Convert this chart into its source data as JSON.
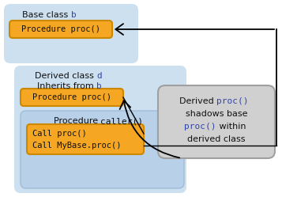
{
  "bg_color": "#ffffff",
  "light_blue": "#cde0f0",
  "light_blue2": "#bad4eb",
  "orange_fill": "#f5a623",
  "orange_border": "#cc8800",
  "gray_fill": "#d0d0d0",
  "gray_border": "#a0a0a0",
  "blue_text": "#3344aa",
  "dark_text": "#111111",
  "mono_font": "monospace",
  "sans_font": "DejaVu Sans",
  "base_class_sans": "Base class ",
  "base_class_mono": "b",
  "derived_class_sans": "Derived class ",
  "derived_class_mono": "d",
  "inherits_sans": "Inherits from ",
  "inherits_mono": "b",
  "proc_text": "Procedure proc()",
  "caller_label_sans": "Procedure ",
  "caller_label_mono": "caller()",
  "call_proc": "Call proc()",
  "call_mybase": "Call MyBase.proc()",
  "ann_line1_sans": "Derived ",
  "ann_line1_mono": "proc()",
  "ann_line2": "shadows base",
  "ann_line3_mono": "proc()",
  "ann_line3_sans": " within",
  "ann_line4": "derived class"
}
